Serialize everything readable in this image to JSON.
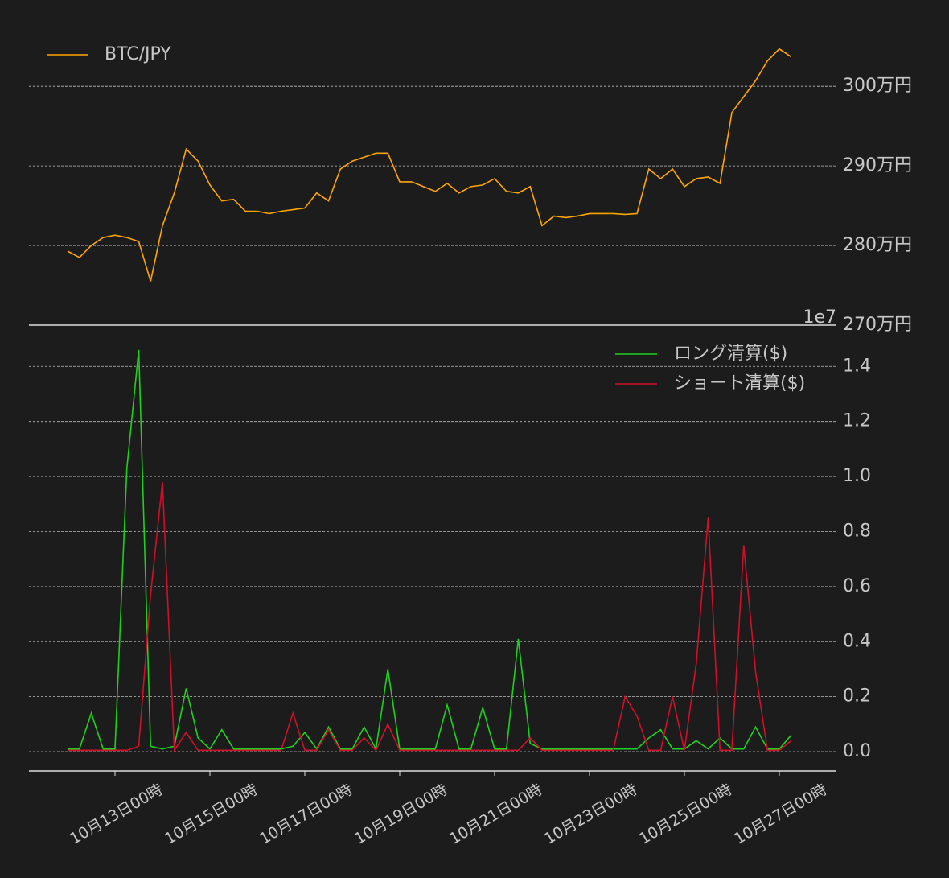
{
  "chart_data": [
    {
      "type": "line",
      "x": [
        "10月12日00時",
        "10月12日06時",
        "10月12日12時",
        "10月12日18時",
        "10月13日00時",
        "10月13日06時",
        "10月13日12時",
        "10月13日18時",
        "10月14日00時",
        "10月14日06時",
        "10月14日12時",
        "10月14日18時",
        "10月15日00時",
        "10月15日06時",
        "10月15日12時",
        "10月15日18時",
        "10月16日00時",
        "10月16日06時",
        "10月16日12時",
        "10月16日18時",
        "10月17日00時",
        "10月17日06時",
        "10月17日12時",
        "10月17日18時",
        "10月18日00時",
        "10月18日06時",
        "10月18日12時",
        "10月18日18時",
        "10月19日00時",
        "10月19日06時",
        "10月19日12時",
        "10月19日18時",
        "10月20日00時",
        "10月20日06時",
        "10月20日12時",
        "10月20日18時",
        "10月21日00時",
        "10月21日06時",
        "10月21日12時",
        "10月21日18時",
        "10月22日00時",
        "10月22日06時",
        "10月22日12時",
        "10月22日18時",
        "10月23日00時",
        "10月23日06時",
        "10月23日12時",
        "10月23日18時",
        "10月24日00時",
        "10月24日06時",
        "10月24日12時",
        "10月24日18時",
        "10月25日00時",
        "10月25日06時",
        "10月25日12時",
        "10月25日18時",
        "10月26日00時",
        "10月26日06時",
        "10月26日12時",
        "10月26日18時",
        "10月27日00時",
        "10月27日06時"
      ],
      "series": [
        {
          "name": "BTC/JPY",
          "color": "#ffa500",
          "values": [
            2793000,
            2785000,
            2800000,
            2810000,
            2813000,
            2810000,
            2805000,
            2755000,
            2825000,
            2866000,
            2921000,
            2906000,
            2876000,
            2856000,
            2858000,
            2843000,
            2843000,
            2840000,
            2843000,
            2845000,
            2847000,
            2866000,
            2856000,
            2896000,
            2906000,
            2911000,
            2916000,
            2916000,
            2880000,
            2880000,
            2874000,
            2868000,
            2878000,
            2866000,
            2874000,
            2876000,
            2884000,
            2868000,
            2866000,
            2874000,
            2825000,
            2837000,
            2835000,
            2837000,
            2840000,
            2840000,
            2840000,
            2839000,
            2840000,
            2896000,
            2884000,
            2896000,
            2874000,
            2884000,
            2886000,
            2878000,
            2967000,
            2987000,
            3007000,
            3032000,
            3047000,
            3037000
          ]
        }
      ],
      "ylim": [
        2700000,
        3078000
      ],
      "yticks": [
        {
          "value": 2700000,
          "label": "270万円"
        },
        {
          "value": 2800000,
          "label": "280万円"
        },
        {
          "value": 2900000,
          "label": "290万円"
        },
        {
          "value": 3000000,
          "label": "300万円"
        }
      ],
      "grid": true,
      "legend": "upper left"
    },
    {
      "type": "line",
      "y_offset_label": "1e7",
      "series": [
        {
          "name": "ロング清算($)",
          "color": "#1fd01f",
          "values": [
            0.01,
            0.01,
            0.14,
            0.01,
            0.01,
            1.03,
            1.46,
            0.02,
            0.01,
            0.02,
            0.23,
            0.05,
            0.01,
            0.08,
            0.01,
            0.01,
            0.01,
            0.01,
            0.01,
            0.02,
            0.07,
            0.01,
            0.09,
            0.01,
            0.01,
            0.09,
            0.01,
            0.3,
            0.01,
            0.01,
            0.01,
            0.01,
            0.17,
            0.01,
            0.01,
            0.16,
            0.01,
            0.01,
            0.41,
            0.03,
            0.01,
            0.01,
            0.01,
            0.01,
            0.01,
            0.01,
            0.01,
            0.01,
            0.01,
            0.05,
            0.08,
            0.01,
            0.01,
            0.04,
            0.01,
            0.05,
            0.01,
            0.01,
            0.09,
            0.01,
            0.01,
            0.06
          ]
        },
        {
          "name": "ショート清算($)",
          "color": "#d0102a",
          "values": [
            0.005,
            0.005,
            0.005,
            0.005,
            0.005,
            0.005,
            0.02,
            0.57,
            0.98,
            0.005,
            0.07,
            0.005,
            0.005,
            0.005,
            0.005,
            0.005,
            0.005,
            0.005,
            0.005,
            0.14,
            0.005,
            0.005,
            0.08,
            0.005,
            0.005,
            0.05,
            0.005,
            0.1,
            0.005,
            0.005,
            0.005,
            0.005,
            0.005,
            0.005,
            0.005,
            0.005,
            0.005,
            0.005,
            0.005,
            0.05,
            0.005,
            0.005,
            0.005,
            0.005,
            0.005,
            0.005,
            0.005,
            0.2,
            0.13,
            0.005,
            0.005,
            0.2,
            0.005,
            0.32,
            0.85,
            0.005,
            0.005,
            0.75,
            0.29,
            0.005,
            0.005,
            0.04
          ]
        }
      ],
      "ylim": [
        -0.07,
        1.547
      ],
      "yticks": [
        {
          "value": 0,
          "label": "0.0"
        },
        0.2,
        0.4,
        0.6,
        0.8,
        {
          "value": 1,
          "label": "1.0"
        },
        1.2,
        1.4
      ],
      "xticks": [
        "10月13日00時",
        "10月15日00時",
        "10月17日00時",
        "10月19日00時",
        "10月21日00時",
        "10月23日00時",
        "10月25日00時",
        "10月27日00時"
      ],
      "grid": true,
      "legend": "upper right"
    }
  ]
}
